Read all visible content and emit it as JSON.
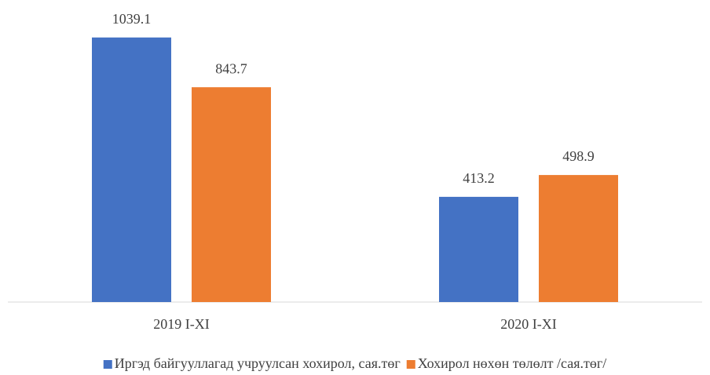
{
  "chart_data": {
    "type": "bar",
    "categories": [
      "2019 I-XI",
      "2020 I-XI"
    ],
    "series": [
      {
        "name": "Иргэд байгууллагад учруулсан хохирол, сая.төг",
        "color": "#4472c4",
        "values": [
          1039.1,
          413.2
        ]
      },
      {
        "name": "Хохирол нөхөн төлөлт /сая.төг/",
        "color": "#ed7d31",
        "values": [
          843.7,
          498.9
        ]
      }
    ],
    "ylim": [
      0,
      1100
    ],
    "legend": "bottom"
  }
}
